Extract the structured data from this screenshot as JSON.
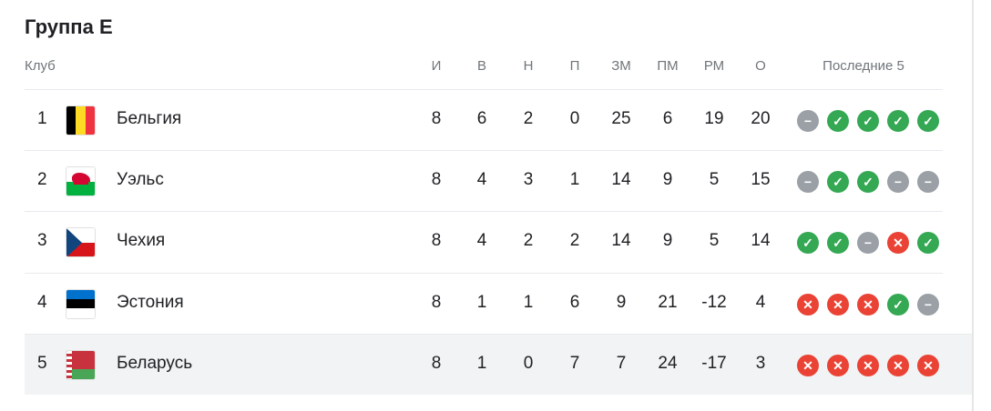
{
  "title": "Группа E",
  "headers": {
    "club": "Клуб",
    "p": "И",
    "w": "В",
    "d": "Н",
    "l": "П",
    "gf": "ЗМ",
    "ga": "ПМ",
    "gd": "РМ",
    "pts": "О",
    "last5": "Последние 5"
  },
  "colors": {
    "win": "#34a853",
    "draw": "#9aa0a6",
    "loss": "#ea4335"
  },
  "rows": [
    {
      "pos": "1",
      "team": "Бельгия",
      "flag": "belgium",
      "p": "8",
      "w": "6",
      "d": "2",
      "l": "0",
      "gf": "25",
      "ga": "6",
      "gd": "19",
      "pts": "20",
      "form": [
        "D",
        "W",
        "W",
        "W",
        "W"
      ]
    },
    {
      "pos": "2",
      "team": "Уэльс",
      "flag": "wales",
      "p": "8",
      "w": "4",
      "d": "3",
      "l": "1",
      "gf": "14",
      "ga": "9",
      "gd": "5",
      "pts": "15",
      "form": [
        "D",
        "W",
        "W",
        "D",
        "D"
      ]
    },
    {
      "pos": "3",
      "team": "Чехия",
      "flag": "czechia",
      "p": "8",
      "w": "4",
      "d": "2",
      "l": "2",
      "gf": "14",
      "ga": "9",
      "gd": "5",
      "pts": "14",
      "form": [
        "W",
        "W",
        "D",
        "L",
        "W"
      ]
    },
    {
      "pos": "4",
      "team": "Эстония",
      "flag": "estonia",
      "p": "8",
      "w": "1",
      "d": "1",
      "l": "6",
      "gf": "9",
      "ga": "21",
      "gd": "-12",
      "pts": "4",
      "form": [
        "L",
        "L",
        "L",
        "W",
        "D"
      ]
    },
    {
      "pos": "5",
      "team": "Беларусь",
      "flag": "belarus",
      "p": "8",
      "w": "1",
      "d": "0",
      "l": "7",
      "gf": "7",
      "ga": "24",
      "gd": "-17",
      "pts": "3",
      "form": [
        "L",
        "L",
        "L",
        "L",
        "L"
      ],
      "highlighted": true
    }
  ]
}
